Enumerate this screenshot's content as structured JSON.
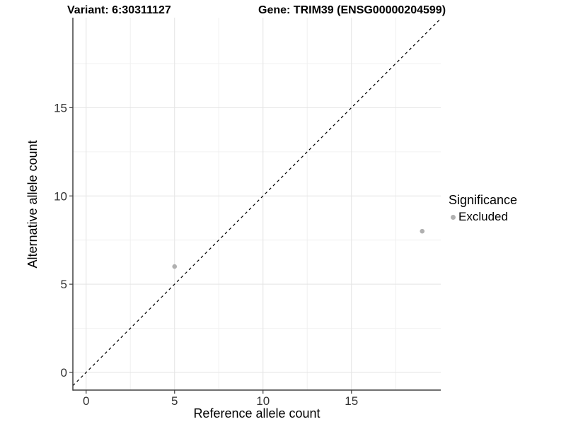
{
  "chart_data": {
    "type": "scatter",
    "title_left": "Variant: 6:30311127",
    "title_right": "Gene: TRIM39 (ENSG00000204599)",
    "xlabel": "Reference allele count",
    "ylabel": "Alternative allele count",
    "xlim": [
      -0.75,
      20.05
    ],
    "ylim": [
      -1.0,
      20.1
    ],
    "x_ticks": [
      0,
      5,
      10,
      15
    ],
    "y_ticks": [
      0,
      5,
      10,
      15
    ],
    "x_minor_ticks": [
      2.5,
      7.5,
      12.5,
      17.5
    ],
    "y_minor_ticks": [
      2.5,
      7.5,
      12.5,
      17.5
    ],
    "grid": "major and minor gridlines, no panel border, left and bottom axis lines only",
    "series": [
      {
        "name": "Excluded",
        "color": "#b0b0b0",
        "points": [
          {
            "x": 5,
            "y": 6
          },
          {
            "x": 19,
            "y": 8
          }
        ]
      }
    ],
    "reference_line": {
      "kind": "identity",
      "slope": 1,
      "intercept": 0,
      "style": "dashed",
      "color": "#000000"
    },
    "legend": {
      "title": "Significance",
      "position": "right",
      "items": [
        {
          "label": "Excluded",
          "color": "#b0b0b0"
        }
      ]
    }
  },
  "colors": {
    "background": "#ffffff",
    "grid_major": "#e4e4e4",
    "grid_minor": "#f0f0f0",
    "axis_line": "#404040",
    "tick_mark": "#404040",
    "tick_text": "#333333",
    "point": "#b0b0b0"
  }
}
